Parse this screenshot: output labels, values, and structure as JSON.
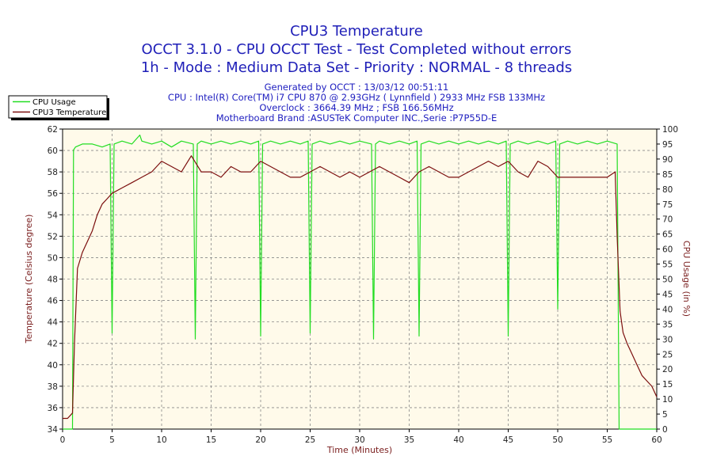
{
  "chart_data": {
    "type": "line",
    "title_lines": [
      "CPU3 Temperature",
      "OCCT 3.1.0 - CPU OCCT Test - Test Completed without errors",
      "1h - Mode : Medium Data Set - Priority : NORMAL - 8 threads"
    ],
    "info_lines": [
      "Generated by OCCT : 13/03/12 00:51:11",
      "CPU : Intel(R) Core(TM) i7 CPU 870 @ 2.93GHz ( Lynnfield ) 2933 MHz FSB 133MHz",
      "Overclock : 3664.39 MHz ; FSB 166.56MHz",
      "Motherboard Brand :ASUSTeK Computer INC.,Serie :P7P55D-E"
    ],
    "xlabel": "Time (Minutes)",
    "ylabel_left": "Temperature (Celsius degree)",
    "ylabel_right": "CPU Usage (in %)",
    "xlim": [
      0,
      60
    ],
    "ylim_left": [
      34,
      62
    ],
    "ylim_right": [
      0,
      100
    ],
    "x_ticks": [
      "0",
      "5",
      "10",
      "15",
      "20",
      "25",
      "30",
      "35",
      "40",
      "45",
      "50",
      "55",
      "60"
    ],
    "y_left_ticks": [
      "34",
      "36",
      "38",
      "40",
      "42",
      "44",
      "46",
      "48",
      "50",
      "52",
      "54",
      "56",
      "58",
      "60",
      "62"
    ],
    "y_right_ticks": [
      "0",
      "5",
      "10",
      "15",
      "20",
      "25",
      "30",
      "35",
      "40",
      "45",
      "50",
      "55",
      "60",
      "65",
      "70",
      "75",
      "80",
      "85",
      "90",
      "95",
      "100"
    ],
    "grid": true,
    "legend_position": "top-left",
    "colors": {
      "cpu_usage": "#22dd22",
      "temperature": "#7b0e0e",
      "plot_bg": "#fffaea",
      "grid": "#888888"
    },
    "series": [
      {
        "name": "CPU Usage",
        "axis": "right",
        "x": [
          0,
          1.0,
          1.1,
          1.3,
          2,
          3,
          4,
          4.8,
          5.0,
          5.2,
          6,
          7,
          7.8,
          8,
          9,
          10,
          11,
          12,
          13.2,
          13.4,
          13.6,
          14,
          15,
          16,
          17,
          18,
          19,
          19.8,
          20.0,
          20.2,
          21,
          22,
          23,
          24,
          24.8,
          25.0,
          25.2,
          26,
          27,
          28,
          29,
          30,
          31.2,
          31.4,
          31.6,
          32,
          33,
          34,
          35,
          35.8,
          36.0,
          36.2,
          37,
          38,
          39,
          40,
          41,
          42,
          43,
          44,
          44.8,
          45.0,
          45.2,
          46,
          47,
          48,
          49,
          49.8,
          50.0,
          50.2,
          51,
          52,
          53,
          54,
          55,
          56.0,
          56.2,
          56.4,
          60
        ],
        "y": [
          0,
          0,
          93,
          94,
          95,
          95,
          94,
          95,
          32,
          95,
          96,
          95,
          98,
          96,
          95,
          96,
          94,
          96,
          95,
          30,
          95,
          96,
          95,
          96,
          95,
          96,
          95,
          96,
          31,
          95,
          96,
          95,
          96,
          95,
          96,
          32,
          95,
          96,
          95,
          96,
          95,
          96,
          95,
          30,
          95,
          96,
          95,
          96,
          95,
          96,
          31,
          95,
          96,
          95,
          96,
          95,
          96,
          95,
          96,
          95,
          96,
          31,
          95,
          96,
          95,
          96,
          95,
          96,
          40,
          95,
          96,
          95,
          96,
          95,
          96,
          95,
          0,
          0,
          0
        ]
      },
      {
        "name": "CPU3 Temperature",
        "axis": "left",
        "x": [
          0,
          0.5,
          1.0,
          1.2,
          1.5,
          2,
          2.5,
          3,
          3.5,
          4,
          4.5,
          5,
          6,
          7,
          8,
          9,
          10,
          11,
          12,
          13,
          14,
          15,
          16,
          17,
          18,
          19,
          20,
          21,
          22,
          23,
          24,
          25,
          26,
          27,
          28,
          29,
          30,
          31,
          32,
          33,
          34,
          35,
          36,
          37,
          38,
          39,
          40,
          41,
          42,
          43,
          44,
          45,
          46,
          47,
          48,
          49,
          50,
          51,
          52,
          53,
          54,
          55,
          55.8,
          56.0,
          56.3,
          56.6,
          57,
          57.5,
          58,
          58.5,
          59,
          59.5,
          60
        ],
        "y": [
          35,
          35,
          35.5,
          42,
          49,
          50.5,
          51.5,
          52.5,
          54,
          55,
          55.5,
          56,
          56.5,
          57,
          57.5,
          58,
          59,
          58.5,
          58,
          59.5,
          58,
          58,
          57.5,
          58.5,
          58,
          58,
          59,
          58.5,
          58,
          57.5,
          57.5,
          58,
          58.5,
          58,
          57.5,
          58,
          57.5,
          58,
          58.5,
          58,
          57.5,
          57,
          58,
          58.5,
          58,
          57.5,
          57.5,
          58,
          58.5,
          59,
          58.5,
          59,
          58,
          57.5,
          59,
          58.5,
          57.5,
          57.5,
          57.5,
          57.5,
          57.5,
          57.5,
          58,
          52,
          45,
          43,
          42,
          41,
          40,
          39,
          38.5,
          38,
          37
        ]
      }
    ]
  }
}
